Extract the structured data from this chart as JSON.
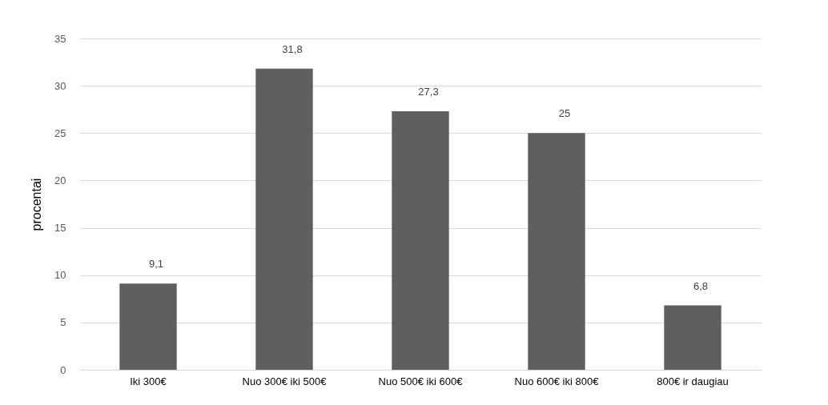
{
  "chart_data": {
    "type": "bar",
    "ylabel": "procentai",
    "categories": [
      "Iki 300€",
      "Nuo 300€ iki 500€",
      "Nuo 500€ iki 600€",
      "Nuo 600€ iki 800€",
      "800€ ir daugiau"
    ],
    "values": [
      9.1,
      31.8,
      27.3,
      25,
      6.8
    ],
    "value_labels": [
      "9,1",
      "31,8",
      "27,3",
      "25",
      "6,8"
    ],
    "color": "#5f5f5f",
    "ylim": [
      0,
      35
    ],
    "yticks": [
      0,
      5,
      10,
      15,
      20,
      25,
      30,
      35
    ],
    "grid": "y"
  }
}
